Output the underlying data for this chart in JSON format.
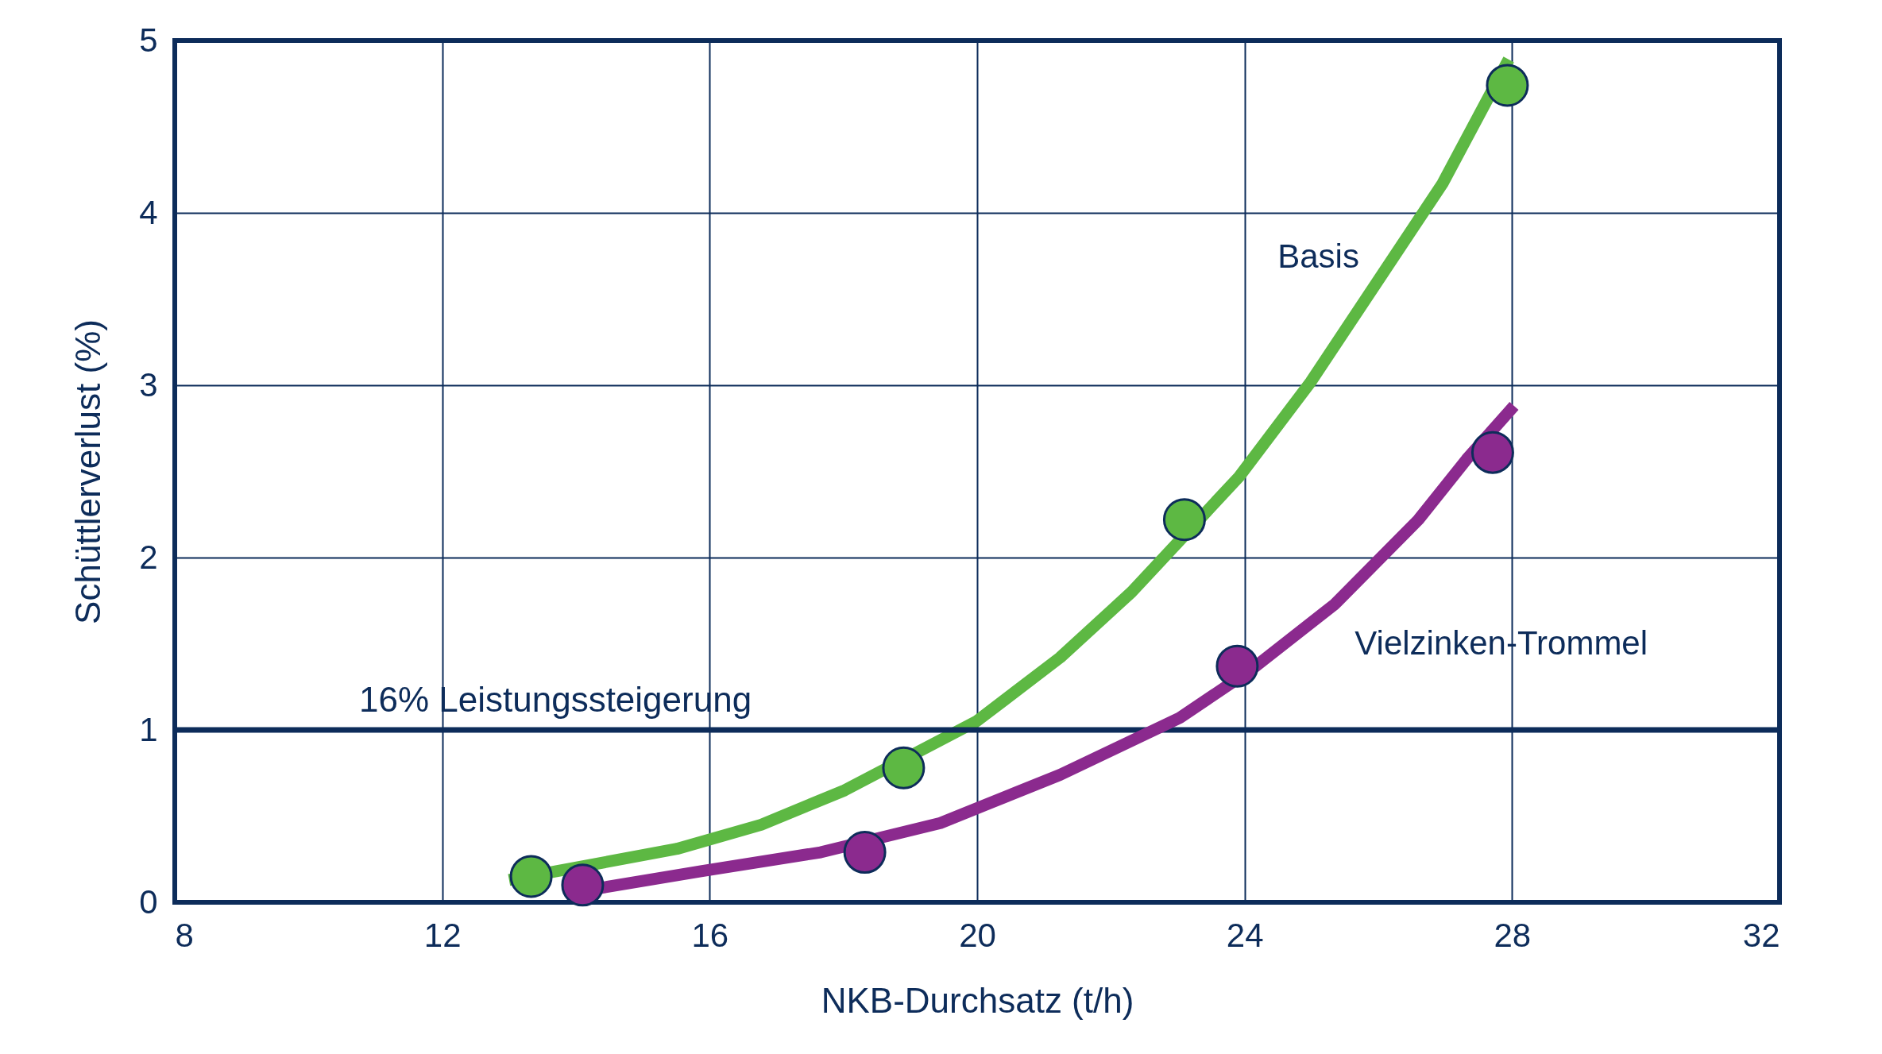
{
  "chart_data": {
    "type": "scatter",
    "xlabel": "NKB-Durchsatz (t/h)",
    "ylabel": "Schüttlerverlust (%)",
    "xlim": [
      8,
      32
    ],
    "xticks": [
      8,
      12,
      16,
      20,
      24,
      28,
      32
    ],
    "ylim": [
      0,
      5
    ],
    "yticks": [
      0,
      1,
      2,
      3,
      4,
      5
    ],
    "grid": true,
    "marker": "circle",
    "line_style": "solid",
    "series": [
      {
        "type": "line",
        "marker": "none",
        "name": "Basis",
        "color": "#5db843",
        "x": [
          13.0,
          15.51,
          16.77,
          18.02,
          19.99,
          21.24,
          22.31,
          23.92,
          24.99,
          26.07,
          26.96,
          27.95
        ],
        "values": [
          0.13,
          0.31,
          0.45,
          0.65,
          1.05,
          1.42,
          1.8,
          2.47,
          3.02,
          3.65,
          4.17,
          4.89
        ]
      },
      {
        "type": "line",
        "marker": "none",
        "name": "Vielzinken-Trommel",
        "color": "#8b2a8e",
        "x": [
          14.0,
          15.87,
          17.66,
          19.45,
          21.24,
          23.03,
          24.1,
          25.35,
          26.6,
          27.32,
          28.03
        ],
        "values": [
          0.06,
          0.18,
          0.29,
          0.46,
          0.74,
          1.07,
          1.35,
          1.73,
          2.22,
          2.57,
          2.88
        ]
      },
      {
        "color": "#5db843",
        "x": [
          13.33,
          18.9,
          23.1,
          27.93
        ],
        "values": [
          0.15,
          0.78,
          2.22,
          4.74
        ]
      },
      {
        "color": "#8b2a8e",
        "x": [
          14.1,
          18.32,
          23.89,
          27.71
        ],
        "values": [
          0.1,
          0.29,
          1.37,
          2.61
        ]
      }
    ],
    "ref_lines": [
      {
        "axis": "y",
        "value": 1,
        "label": "16% Leistungssteigerung",
        "color": "#0d2c5a"
      }
    ]
  }
}
